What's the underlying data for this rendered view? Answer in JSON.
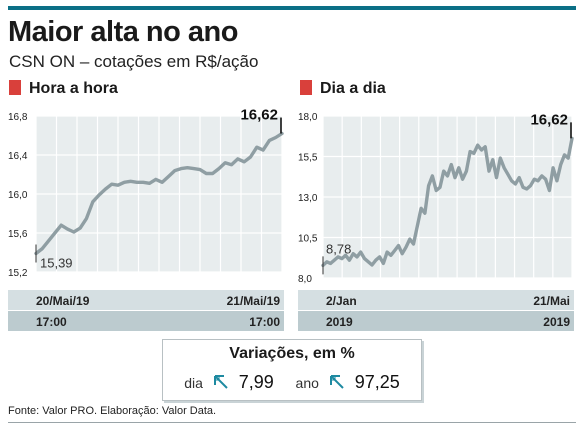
{
  "header": {
    "title": "Maior alta no ano",
    "subtitle": "CSN ON – cotações em R$/ação"
  },
  "colors": {
    "accent_rule": "#0b6f86",
    "marker_square": "#d9403b",
    "line": "#8f9ea3",
    "plot_bg": "#e8edee",
    "axis_band_light": "#d5dfe2",
    "axis_band_dark": "#bccbcf",
    "arrow": "#1e8aa1"
  },
  "chart_data": [
    {
      "type": "line",
      "panel_title": "Hora a hora",
      "ylim": [
        15.2,
        16.8
      ],
      "yticks": [
        "15,2",
        "15,6",
        "16,0",
        "16,4",
        "16,8"
      ],
      "x_labels_top": [
        "20/Mai/19",
        "21/Mai/19"
      ],
      "x_labels_bottom": [
        "17:00",
        "17:00"
      ],
      "start_label": "15,39",
      "end_label": "16,62",
      "grid": true,
      "values": [
        15.39,
        15.44,
        15.52,
        15.6,
        15.68,
        15.64,
        15.61,
        15.65,
        15.75,
        15.92,
        15.99,
        16.05,
        16.1,
        16.09,
        16.12,
        16.13,
        16.12,
        16.12,
        16.11,
        16.15,
        16.12,
        16.18,
        16.24,
        16.26,
        16.27,
        16.26,
        16.25,
        16.21,
        16.21,
        16.26,
        16.32,
        16.3,
        16.36,
        16.33,
        16.38,
        16.48,
        16.45,
        16.55,
        16.58,
        16.62
      ]
    },
    {
      "type": "line",
      "panel_title": "Dia a dia",
      "ylim": [
        8.0,
        18.0
      ],
      "yticks": [
        "8,0",
        "10,5",
        "13,0",
        "15,5",
        "18,0"
      ],
      "x_labels_top": [
        "2/Jan",
        "21/Mai"
      ],
      "x_labels_bottom": [
        "2019",
        "2019"
      ],
      "start_label": "8,78",
      "end_label": "16,62",
      "grid": true,
      "values": [
        8.78,
        9.0,
        8.9,
        9.1,
        9.3,
        9.2,
        9.4,
        9.1,
        9.5,
        9.3,
        9.6,
        9.2,
        9.0,
        8.8,
        9.1,
        9.3,
        8.9,
        9.6,
        9.4,
        9.7,
        10.0,
        9.5,
        9.9,
        10.4,
        10.1,
        11.2,
        12.3,
        12.0,
        13.7,
        14.3,
        13.4,
        13.6,
        14.6,
        14.3,
        15.0,
        14.2,
        14.8,
        14.1,
        14.6,
        15.8,
        15.7,
        16.2,
        15.9,
        16.1,
        14.6,
        15.3,
        14.2,
        15.4,
        14.8,
        14.4,
        14.0,
        13.8,
        14.2,
        13.6,
        13.5,
        13.7,
        14.1,
        14.0,
        14.3,
        14.1,
        13.4,
        14.8,
        14.0,
        15.0,
        15.6,
        15.4,
        16.62
      ]
    }
  ],
  "variations": {
    "title": "Variações, em %",
    "day_label": "dia",
    "day_value": "7,99",
    "year_label": "ano",
    "year_value": "97,25",
    "icon": "arrow-up-left-icon"
  },
  "footer": {
    "source": "Fonte: Valor PRO. Elaboração: Valor Data."
  }
}
